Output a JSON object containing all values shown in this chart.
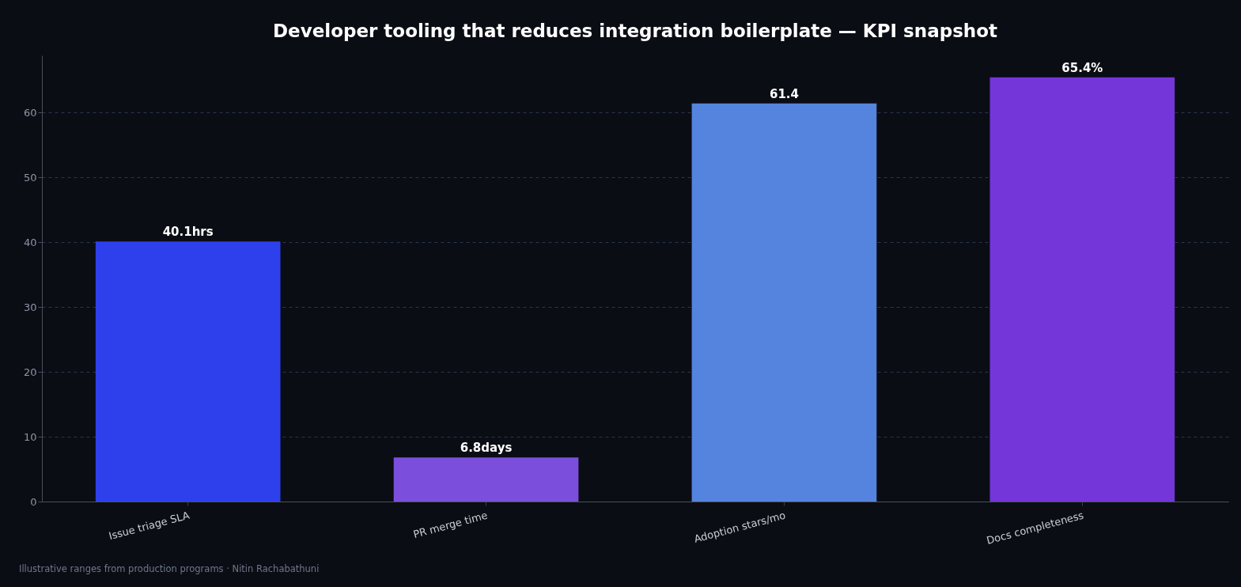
{
  "chart_data": {
    "type": "bar",
    "title": "Developer tooling that reduces integration boilerplate — KPI snapshot",
    "categories": [
      "Issue triage SLA",
      "PR merge time",
      "Adoption stars/mo",
      "Docs completeness"
    ],
    "values": [
      40.1,
      6.8,
      61.4,
      65.4
    ],
    "value_labels": [
      "40.1hrs",
      "6.8days",
      "61.4",
      "65.4%"
    ],
    "colors": [
      "#2e40eb",
      "#7b4fdc",
      "#5584de",
      "#7436d9"
    ],
    "ylim": [
      0,
      68.8
    ],
    "yticks": [
      0,
      10,
      20,
      30,
      40,
      50,
      60
    ],
    "grid": "y",
    "annotations": [
      "Illustrative ranges from production programs · Nitin Rachabathuni"
    ]
  }
}
